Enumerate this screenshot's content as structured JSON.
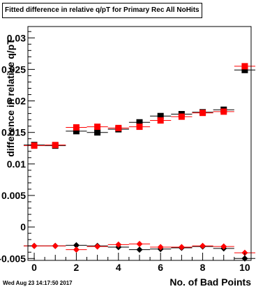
{
  "chart_data": {
    "type": "scatter",
    "title": "Fitted difference in relative q/pT for Primary Rec All NoHits",
    "xlabel": "No. of Bad Points",
    "ylabel": "difference in relative q/pT",
    "xlim": [
      -0.3,
      10.3
    ],
    "ylim": [
      -0.0053,
      0.0318
    ],
    "xticks": [
      0,
      2,
      4,
      6,
      8,
      10
    ],
    "yticks": [
      -0.005,
      0,
      0.005,
      0.01,
      0.015,
      0.02,
      0.025,
      0.03
    ],
    "ytick_labels": [
      "-0.005",
      "0",
      "0.005",
      "0.01",
      "0.015",
      "0.02",
      "0.025",
      "0.03"
    ],
    "grid": false,
    "series": [
      {
        "color": "#000000",
        "marker": "square",
        "x": [
          0,
          1,
          2,
          3,
          4,
          5,
          6,
          7,
          8,
          9,
          10
        ],
        "y": [
          0.013,
          0.0129,
          0.0152,
          0.015,
          0.0155,
          0.0166,
          0.0176,
          0.0179,
          0.0182,
          0.0186,
          0.0249
        ]
      },
      {
        "color": "#ff0000",
        "marker": "square",
        "x": [
          0,
          1,
          2,
          3,
          4,
          5,
          6,
          7,
          8,
          9,
          10
        ],
        "y": [
          0.0129,
          0.013,
          0.0158,
          0.0159,
          0.0157,
          0.0159,
          0.0169,
          0.0175,
          0.0181,
          0.0183,
          0.0255
        ]
      },
      {
        "color": "#000000",
        "marker": "diamond",
        "x": [
          0,
          1,
          2,
          3,
          4,
          5,
          6,
          7,
          8,
          9,
          10
        ],
        "y": [
          -0.003,
          -0.003,
          -0.0029,
          -0.003,
          -0.0032,
          -0.0036,
          -0.0035,
          -0.0033,
          -0.0031,
          -0.0034,
          -0.005
        ]
      },
      {
        "color": "#ff0000",
        "marker": "diamond",
        "x": [
          0,
          1,
          2,
          3,
          4,
          5,
          6,
          7,
          8,
          9,
          10
        ],
        "y": [
          -0.003,
          -0.003,
          -0.0036,
          -0.0031,
          -0.0028,
          -0.0027,
          -0.0032,
          -0.0032,
          -0.003,
          -0.0031,
          -0.0041
        ]
      }
    ]
  },
  "timestamp": "Wed Aug 23 14:17:50 2017"
}
